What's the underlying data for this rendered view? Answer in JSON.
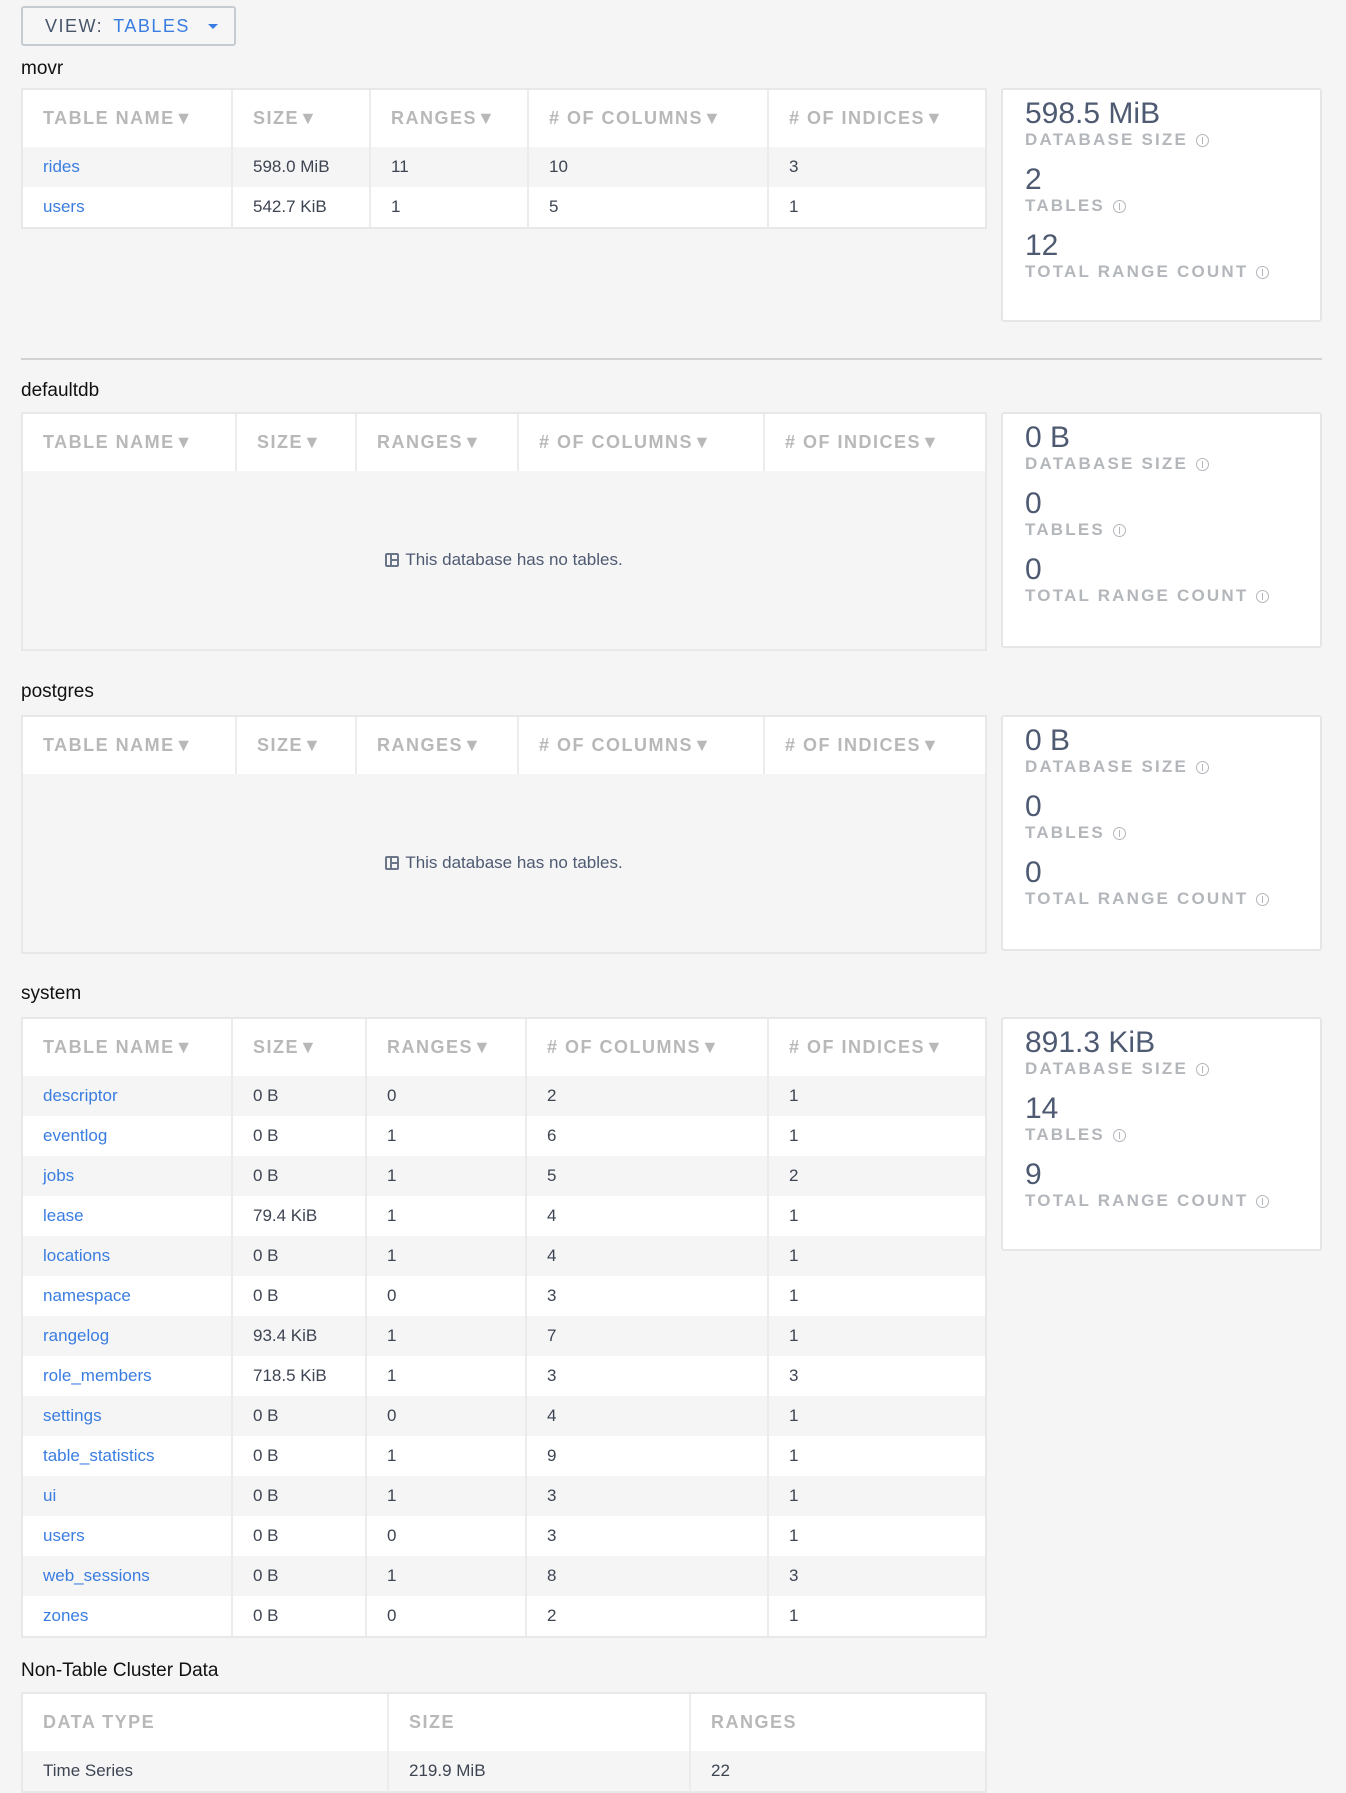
{
  "view_selector": {
    "label": "VIEW:",
    "value": "TABLES"
  },
  "stat_labels": {
    "size": "DATABASE SIZE",
    "tables": "TABLES",
    "ranges": "TOTAL RANGE COUNT"
  },
  "table_headers": [
    "TABLE NAME▼",
    "SIZE▼",
    "RANGES▼",
    "# OF COLUMNS▼",
    "# OF INDICES▼"
  ],
  "empty_message": "This database has no tables.",
  "databases": [
    {
      "name": "movr",
      "stats": {
        "size": "598.5 MiB",
        "tables": "2",
        "ranges": "12"
      },
      "rows": [
        [
          "rides",
          "598.0 MiB",
          "11",
          "10",
          "3"
        ],
        [
          "users",
          "542.7 KiB",
          "1",
          "5",
          "1"
        ]
      ]
    },
    {
      "name": "defaultdb",
      "stats": {
        "size": "0 B",
        "tables": "0",
        "ranges": "0"
      },
      "rows": []
    },
    {
      "name": "postgres",
      "stats": {
        "size": "0 B",
        "tables": "0",
        "ranges": "0"
      },
      "rows": []
    },
    {
      "name": "system",
      "stats": {
        "size": "891.3 KiB",
        "tables": "14",
        "ranges": "9"
      },
      "rows": [
        [
          "descriptor",
          "0 B",
          "0",
          "2",
          "1"
        ],
        [
          "eventlog",
          "0 B",
          "1",
          "6",
          "1"
        ],
        [
          "jobs",
          "0 B",
          "1",
          "5",
          "2"
        ],
        [
          "lease",
          "79.4 KiB",
          "1",
          "4",
          "1"
        ],
        [
          "locations",
          "0 B",
          "1",
          "4",
          "1"
        ],
        [
          "namespace",
          "0 B",
          "0",
          "3",
          "1"
        ],
        [
          "rangelog",
          "93.4 KiB",
          "1",
          "7",
          "1"
        ],
        [
          "role_members",
          "718.5 KiB",
          "1",
          "3",
          "3"
        ],
        [
          "settings",
          "0 B",
          "0",
          "4",
          "1"
        ],
        [
          "table_statistics",
          "0 B",
          "1",
          "9",
          "1"
        ],
        [
          "ui",
          "0 B",
          "1",
          "3",
          "1"
        ],
        [
          "users",
          "0 B",
          "0",
          "3",
          "1"
        ],
        [
          "web_sessions",
          "0 B",
          "1",
          "8",
          "3"
        ],
        [
          "zones",
          "0 B",
          "0",
          "2",
          "1"
        ]
      ]
    }
  ],
  "non_table": {
    "title": "Non-Table Cluster Data",
    "headers": [
      "DATA TYPE",
      "SIZE",
      "RANGES"
    ],
    "rows": [
      [
        "Time Series",
        "219.9 MiB",
        "22"
      ]
    ]
  }
}
